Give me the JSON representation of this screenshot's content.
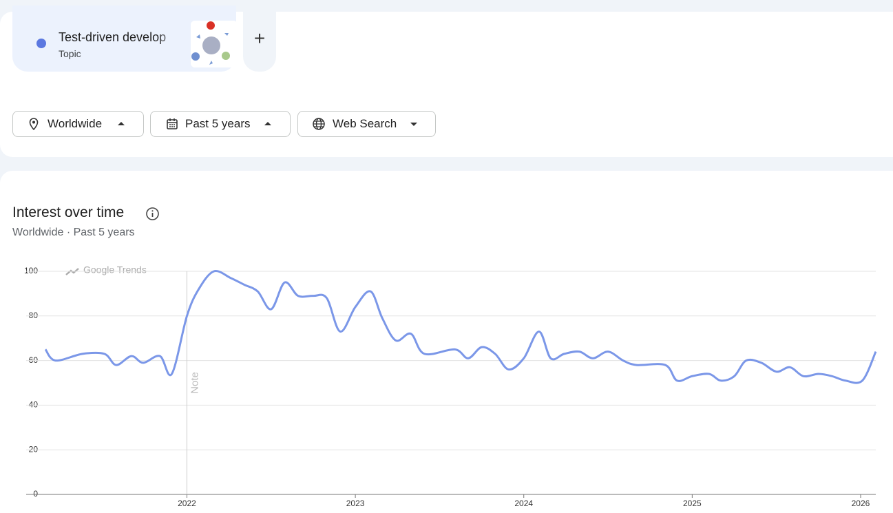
{
  "search_term": {
    "label": "Test-driven develop",
    "kind": "Topic",
    "color": "#5b78e0"
  },
  "add_button": "+",
  "filters": [
    "Worldwide",
    "Past 5 years",
    "Web Search"
  ],
  "chart_data": {
    "type": "line",
    "title": "Interest over time",
    "subtitle": "Worldwide · Past 5 years",
    "watermark": "Google Trends",
    "color": "#7b97e8",
    "grid": true,
    "x": [
      2021.16,
      2021.22,
      2021.38,
      2021.51,
      2021.58,
      2021.67,
      2021.74,
      2021.84,
      2021.91,
      2022.0,
      2022.07,
      2022.16,
      2022.26,
      2022.34,
      2022.42,
      2022.5,
      2022.58,
      2022.66,
      2022.75,
      2022.83,
      2022.91,
      2023.0,
      2023.09,
      2023.16,
      2023.24,
      2023.33,
      2023.41,
      2023.59,
      2023.67,
      2023.75,
      2023.83,
      2023.91,
      2024.0,
      2024.09,
      2024.16,
      2024.24,
      2024.33,
      2024.41,
      2024.5,
      2024.59,
      2024.67,
      2024.84,
      2024.91,
      2025.0,
      2025.1,
      2025.17,
      2025.25,
      2025.32,
      2025.41,
      2025.5,
      2025.58,
      2025.66,
      2025.75,
      2025.83,
      2025.91,
      2026.01,
      2026.09
    ],
    "values": [
      65,
      60,
      63,
      63,
      58,
      62,
      59,
      62,
      54,
      80,
      92,
      100,
      97,
      94,
      91,
      83,
      95,
      89,
      89,
      88,
      73,
      84,
      91,
      79,
      69,
      72,
      63,
      65,
      61,
      66,
      63,
      56,
      61,
      73,
      61,
      63,
      64,
      61,
      64,
      60,
      58,
      58,
      51,
      53,
      54,
      51,
      53,
      60,
      59,
      55,
      57,
      53,
      54,
      53,
      51,
      51,
      64
    ],
    "xlim": [
      2021.16,
      2026.09
    ],
    "xticks": [
      2022,
      2023,
      2024,
      2025,
      2026
    ],
    "ylim": [
      0,
      100
    ],
    "yticks": [
      0,
      20,
      40,
      60,
      80,
      100
    ],
    "annotations": [
      {
        "x": 2022,
        "label": "Note"
      }
    ]
  }
}
